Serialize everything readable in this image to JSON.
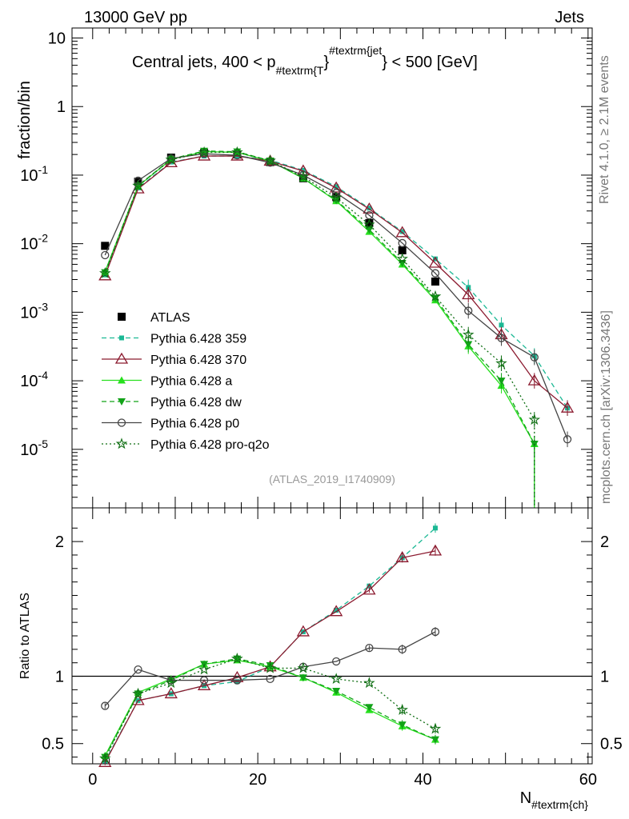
{
  "header": {
    "left": "13000 GeV pp",
    "right": "Jets",
    "side_rivet": "Rivet 4.1.0, ≥ 2.1M events",
    "side_mcplots": "mcplots.cern.ch [arXiv:1306.3436]"
  },
  "colors": {
    "atlas": "#000000",
    "p359": "#1bb894",
    "p370": "#8b1a2f",
    "pa": "#27e01e",
    "pdw": "#12a318",
    "pp0": "#444444",
    "pq2o": "#0e6e12"
  },
  "chart_data": [
    {
      "type": "line",
      "title": "Central jets, 400 < p",
      "title_sub": "#textrm{T",
      "title_sup": "#textrm{jet",
      "title_end": "} < 500 [GeV]",
      "watermark": "(ATLAS_2019_I1740909)",
      "ylabel": "fraction/bin",
      "yscale": "log",
      "ylim": [
        1.4e-06,
        14
      ],
      "xlim": [
        -2.5,
        60.5
      ],
      "y_ticks": [
        {
          "v": 1e-05,
          "label": "10",
          "exp": "-5"
        },
        {
          "v": 0.0001,
          "label": "10",
          "exp": "-4"
        },
        {
          "v": 0.001,
          "label": "10",
          "exp": "-3"
        },
        {
          "v": 0.01,
          "label": "10",
          "exp": "-2"
        },
        {
          "v": 0.1,
          "label": "10",
          "exp": "-1"
        },
        {
          "v": 1,
          "label": "1",
          "exp": ""
        },
        {
          "v": 10,
          "label": "10",
          "exp": ""
        }
      ],
      "x": [
        1.5,
        5.5,
        9.5,
        13.5,
        17.5,
        21.5,
        25.5,
        29.5,
        33.5,
        37.5,
        41.5,
        45.5,
        49.5,
        53.5,
        57.5
      ],
      "series": [
        {
          "name": "ATLAS",
          "key": "atlas",
          "values": [
            0.0093,
            0.08,
            0.18,
            0.21,
            0.2,
            0.155,
            0.09,
            0.048,
            0.02,
            0.008,
            0.0028,
            null,
            null,
            null,
            null
          ]
        },
        {
          "name": "Pythia 6.428 359",
          "key": "p359",
          "values": [
            0.0035,
            0.065,
            0.155,
            0.19,
            0.19,
            0.165,
            0.118,
            0.068,
            0.033,
            0.015,
            0.006,
            0.0023,
            0.00065,
            0.00023,
            4e-05
          ]
        },
        {
          "name": "Pythia 6.428 370",
          "key": "p370",
          "values": [
            0.0034,
            0.063,
            0.152,
            0.19,
            0.19,
            0.16,
            0.115,
            0.065,
            0.032,
            0.0145,
            0.0052,
            0.0018,
            0.00047,
            0.0001,
            4e-05
          ]
        },
        {
          "name": "Pythia 6.428 a",
          "key": "pa",
          "values": [
            0.0039,
            0.069,
            0.17,
            0.22,
            0.215,
            0.16,
            0.09,
            0.042,
            0.015,
            0.005,
            0.0015,
            0.00032,
            8.5e-05,
            1.2e-05,
            null
          ]
        },
        {
          "name": "Pythia 6.428 dw",
          "key": "pdw",
          "values": [
            0.0038,
            0.07,
            0.172,
            0.225,
            0.22,
            0.162,
            0.09,
            0.043,
            0.016,
            0.0052,
            0.0016,
            0.00034,
            0.0001,
            1.2e-05,
            null
          ]
        },
        {
          "name": "Pythia 6.428 p0",
          "key": "pp0",
          "values": [
            0.0068,
            0.083,
            0.175,
            0.205,
            0.195,
            0.152,
            0.1,
            0.055,
            0.026,
            0.0102,
            0.0037,
            0.00105,
            0.00042,
            0.00022,
            1.4e-05
          ]
        },
        {
          "name": "Pythia 6.428 pro-q2o",
          "key": "pq2o",
          "values": [
            0.0037,
            0.07,
            0.168,
            0.215,
            0.215,
            0.162,
            0.095,
            0.047,
            0.019,
            0.006,
            0.0017,
            0.00047,
            0.00018,
            2.7e-05,
            null
          ]
        }
      ]
    },
    {
      "type": "line",
      "ylabel": "Ratio to ATLAS",
      "xlabel": "N",
      "xlabel_sub": "#textrm{ch}",
      "ylim": [
        0.35,
        2.25
      ],
      "xlim": [
        -2.5,
        60.5
      ],
      "y_ticks": [
        0.5,
        1,
        2
      ],
      "y_tick_labels": [
        "0.5",
        "1",
        "2"
      ],
      "x_ticks": [
        0,
        20,
        40,
        60
      ],
      "x_tick_labels": [
        "0",
        "20",
        "40",
        "60"
      ],
      "x": [
        1.5,
        5.5,
        9.5,
        13.5,
        17.5,
        21.5,
        25.5,
        29.5,
        33.5,
        37.5,
        41.5
      ],
      "series": [
        {
          "name": "Pythia 6.428 359",
          "key": "p359",
          "values": [
            0.37,
            0.82,
            0.87,
            0.93,
            0.96,
            1.07,
            1.33,
            1.49,
            1.67,
            1.88,
            2.1
          ]
        },
        {
          "name": "Pythia 6.428 370",
          "key": "p370",
          "values": [
            0.36,
            0.82,
            0.87,
            0.93,
            0.99,
            1.07,
            1.33,
            1.48,
            1.64,
            1.88,
            1.93
          ]
        },
        {
          "name": "Pythia 6.428 a",
          "key": "pa",
          "values": [
            0.41,
            0.88,
            0.98,
            1.09,
            1.12,
            1.07,
            0.99,
            0.88,
            0.75,
            0.63,
            0.53
          ]
        },
        {
          "name": "Pythia 6.428 dw",
          "key": "pdw",
          "values": [
            0.4,
            0.87,
            0.97,
            1.09,
            1.13,
            1.08,
            0.99,
            0.89,
            0.77,
            0.64,
            0.53
          ]
        },
        {
          "name": "Pythia 6.428 p0",
          "key": "pp0",
          "values": [
            0.78,
            1.05,
            0.97,
            0.97,
            0.97,
            0.98,
            1.07,
            1.11,
            1.21,
            1.2,
            1.33
          ]
        },
        {
          "name": "Pythia 6.428 pro-q2o",
          "key": "pq2o",
          "values": [
            0.39,
            0.87,
            0.95,
            1.05,
            1.13,
            1.06,
            1.06,
            0.98,
            0.95,
            0.75,
            0.61
          ]
        }
      ]
    }
  ]
}
